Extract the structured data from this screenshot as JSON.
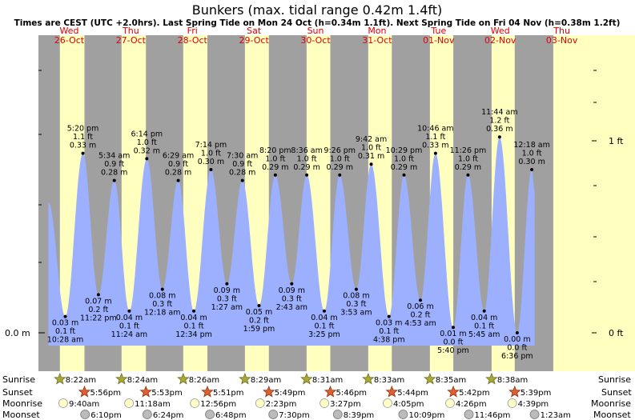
{
  "title": "Bunkers (max. tidal range 0.42m 1.4ft)",
  "subtitle": "Times are CEST (UTC +2.0hrs). Last Spring Tide on Mon 24 Oct (h=0.34m 1.1ft). Next Spring Tide on Fri 04 Nov (h=0.38m 1.2ft)",
  "colors": {
    "night": "#a0a0a0",
    "day": "#ffffc0",
    "tide": "#9db0ff",
    "day_label": "#e00000"
  },
  "days": [
    {
      "dow": "Wed",
      "date": "26-Oct"
    },
    {
      "dow": "Thu",
      "date": "27-Oct"
    },
    {
      "dow": "Fri",
      "date": "28-Oct"
    },
    {
      "dow": "Sat",
      "date": "29-Oct"
    },
    {
      "dow": "Sun",
      "date": "30-Oct"
    },
    {
      "dow": "Mon",
      "date": "31-Oct"
    },
    {
      "dow": "Tue",
      "date": "01-Nov"
    },
    {
      "dow": "Wed",
      "date": "02-Nov"
    },
    {
      "dow": "Thu",
      "date": "03-Nov"
    }
  ],
  "axes": {
    "left_zero": "0.0 m",
    "right_zero": "0 ft",
    "right_one": "1 ft"
  },
  "chart_data": {
    "type": "area",
    "x_unit": "hours from 26-Oct 00:00 CEST",
    "y_unit": "m",
    "ylim": [
      -0.03,
      0.5
    ],
    "extremes": [
      {
        "hour": 10.467,
        "m": 0.03,
        "lines": [
          "0.03 m",
          "0.1 ft",
          "10:28 am"
        ],
        "pos": "below"
      },
      {
        "hour": 17.333,
        "m": 0.33,
        "lines": [
          "5:20 pm",
          "1.1 ft",
          "0.33 m"
        ],
        "pos": "above"
      },
      {
        "hour": 23.367,
        "m": 0.07,
        "lines": [
          "0.07 m",
          "0.2 ft",
          "11:22 pm"
        ],
        "pos": "below"
      },
      {
        "hour": 29.567,
        "m": 0.28,
        "lines": [
          "5:34 am",
          "0.9 ft",
          "0.28 m"
        ],
        "pos": "above"
      },
      {
        "hour": 35.4,
        "m": 0.04,
        "lines": [
          "0.04 m",
          "0.1 ft",
          "11:24 am"
        ],
        "pos": "below"
      },
      {
        "hour": 42.233,
        "m": 0.32,
        "lines": [
          "6:14 pm",
          "1.0 ft",
          "0.32 m"
        ],
        "pos": "above"
      },
      {
        "hour": 48.3,
        "m": 0.08,
        "lines": [
          "0.08 m",
          "0.3 ft",
          "12:18 am"
        ],
        "pos": "below"
      },
      {
        "hour": 54.483,
        "m": 0.28,
        "lines": [
          "6:29 am",
          "0.9 ft",
          "0.28 m"
        ],
        "pos": "above"
      },
      {
        "hour": 60.567,
        "m": 0.04,
        "lines": [
          "0.04 m",
          "0.1 ft",
          "12:34 pm"
        ],
        "pos": "below"
      },
      {
        "hour": 67.233,
        "m": 0.3,
        "lines": [
          "7:14 pm",
          "1.0 ft",
          "0.30 m"
        ],
        "pos": "above"
      },
      {
        "hour": 73.45,
        "m": 0.09,
        "lines": [
          "0.09 m",
          "0.3 ft",
          "1:27 am"
        ],
        "pos": "below"
      },
      {
        "hour": 79.5,
        "m": 0.28,
        "lines": [
          "7:30 am",
          "0.9 ft",
          "0.28 m"
        ],
        "pos": "above"
      },
      {
        "hour": 85.983,
        "m": 0.05,
        "lines": [
          "0.05 m",
          "0.2 ft",
          "1:59 pm"
        ],
        "pos": "below"
      },
      {
        "hour": 92.333,
        "m": 0.29,
        "lines": [
          "8:20 pm",
          "1.0 ft",
          "0.29 m"
        ],
        "pos": "above"
      },
      {
        "hour": 98.717,
        "m": 0.09,
        "lines": [
          "0.09 m",
          "0.3 ft",
          "2:43 am"
        ],
        "pos": "below"
      },
      {
        "hour": 104.6,
        "m": 0.29,
        "lines": [
          "8:36 am",
          "1.0 ft",
          "0.29 m"
        ],
        "pos": "above"
      },
      {
        "hour": 111.417,
        "m": 0.04,
        "lines": [
          "0.04 m",
          "0.1 ft",
          "3:25 pm"
        ],
        "pos": "below"
      },
      {
        "hour": 117.433,
        "m": 0.29,
        "lines": [
          "9:26 pm",
          "1.0 ft",
          "0.29 m"
        ],
        "pos": "above"
      },
      {
        "hour": 123.883,
        "m": 0.08,
        "lines": [
          "0.08 m",
          "0.3 ft",
          "3:53 am"
        ],
        "pos": "below"
      },
      {
        "hour": 129.7,
        "m": 0.31,
        "lines": [
          "9:42 am",
          "1.0 ft",
          "0.31 m"
        ],
        "pos": "above"
      },
      {
        "hour": 136.633,
        "m": 0.03,
        "lines": [
          "0.03 m",
          "0.1 ft",
          "4:38 pm"
        ],
        "pos": "below"
      },
      {
        "hour": 142.483,
        "m": 0.29,
        "lines": [
          "10:29 pm",
          "1.0 ft",
          "0.29 m"
        ],
        "pos": "above"
      },
      {
        "hour": 148.883,
        "m": 0.06,
        "lines": [
          "0.06 m",
          "0.2 ft",
          "4:53 am"
        ],
        "pos": "below"
      },
      {
        "hour": 154.767,
        "m": 0.33,
        "lines": [
          "10:46 am",
          "1.1 ft",
          "0.33 m"
        ],
        "pos": "above"
      },
      {
        "hour": 161.667,
        "m": 0.01,
        "lines": [
          "0.01 m",
          "0.0 ft",
          "5:40 pm"
        ],
        "pos": "below"
      },
      {
        "hour": 167.433,
        "m": 0.29,
        "lines": [
          "11:26 pm",
          "1.0 ft",
          "0.29 m"
        ],
        "pos": "above"
      },
      {
        "hour": 173.75,
        "m": 0.04,
        "lines": [
          "0.04 m",
          "0.1 ft",
          "5:45 am"
        ],
        "pos": "below"
      },
      {
        "hour": 179.733,
        "m": 0.36,
        "lines": [
          "11:44 am",
          "1.2 ft",
          "0.36 m"
        ],
        "pos": "above"
      },
      {
        "hour": 186.6,
        "m": 0.0,
        "lines": [
          "0.00 m",
          "0.0 ft",
          "6:36 pm"
        ],
        "pos": "below"
      },
      {
        "hour": 192.3,
        "m": 0.3,
        "lines": [
          "12:18 am",
          "1.0 ft",
          "0.30 m"
        ],
        "pos": "above"
      }
    ]
  },
  "astro": {
    "labels": {
      "sunrise": "Sunrise",
      "sunset": "Sunset",
      "moonrise": "Moonrise",
      "moonset": "Moonset"
    },
    "sunrise": [
      {
        "hour": 8.367,
        "text": "8:22am"
      },
      {
        "hour": 32.4,
        "text": "8:24am"
      },
      {
        "hour": 56.433,
        "text": "8:26am"
      },
      {
        "hour": 80.483,
        "text": "8:29am"
      },
      {
        "hour": 104.517,
        "text": "8:31am"
      },
      {
        "hour": 128.55,
        "text": "8:33am"
      },
      {
        "hour": 152.583,
        "text": "8:35am"
      },
      {
        "hour": 176.633,
        "text": "8:38am"
      }
    ],
    "sunset": [
      {
        "hour": 17.933,
        "text": "5:56pm"
      },
      {
        "hour": 41.883,
        "text": "5:53pm"
      },
      {
        "hour": 65.85,
        "text": "5:51pm"
      },
      {
        "hour": 89.817,
        "text": "5:49pm"
      },
      {
        "hour": 113.767,
        "text": "5:46pm"
      },
      {
        "hour": 137.733,
        "text": "5:44pm"
      },
      {
        "hour": 161.7,
        "text": "5:42pm"
      },
      {
        "hour": 185.65,
        "text": "5:39pm"
      }
    ],
    "moonrise": [
      {
        "hour": 9.667,
        "text": "9:40am"
      },
      {
        "hour": 35.3,
        "text": "11:18am"
      },
      {
        "hour": 60.933,
        "text": "12:56pm"
      },
      {
        "hour": 86.383,
        "text": "2:23pm"
      },
      {
        "hour": 111.45,
        "text": "3:27pm"
      },
      {
        "hour": 136.083,
        "text": "4:05pm"
      },
      {
        "hour": 160.433,
        "text": "4:26pm"
      },
      {
        "hour": 184.65,
        "text": "4:39pm"
      }
    ],
    "moonset": [
      {
        "hour": 18.167,
        "text": "6:10pm"
      },
      {
        "hour": 42.4,
        "text": "6:24pm"
      },
      {
        "hour": 66.8,
        "text": "6:48pm"
      },
      {
        "hour": 91.5,
        "text": "7:30pm"
      },
      {
        "hour": 116.65,
        "text": "8:39pm"
      },
      {
        "hour": 142.15,
        "text": "10:09pm"
      },
      {
        "hour": 167.767,
        "text": "11:46pm"
      },
      {
        "hour": 193.383,
        "text": "1:23am"
      }
    ]
  }
}
